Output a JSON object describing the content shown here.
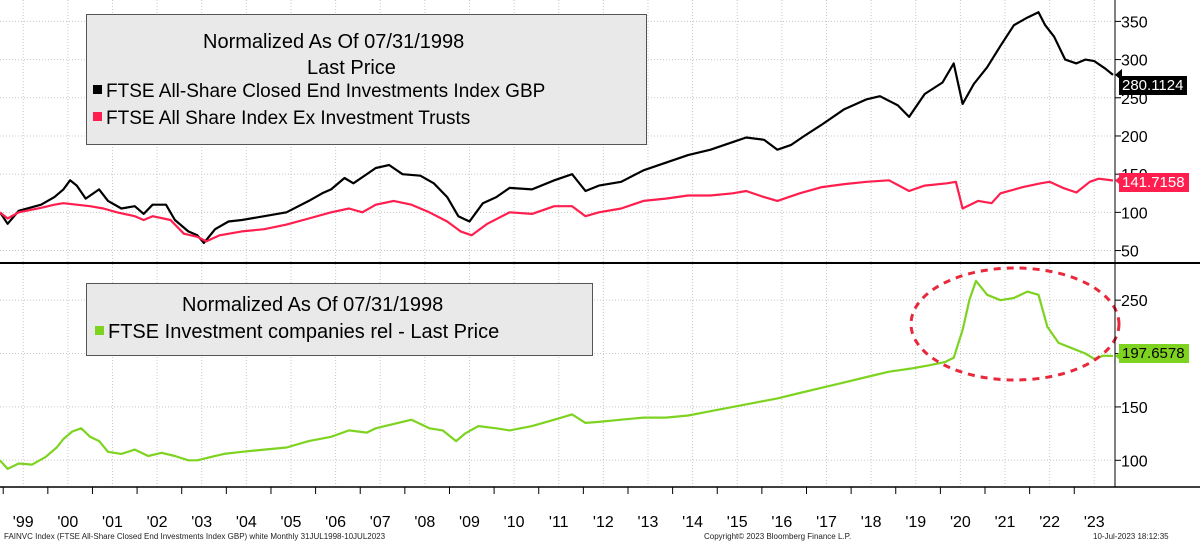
{
  "top_legend": {
    "title1": "Normalized As Of 07/31/1998",
    "title2": "Last Price",
    "series1": "FTSE All-Share Closed End Investments Index GBP",
    "series2": "FTSE All Share Index Ex Investment Trusts"
  },
  "bottom_legend": {
    "title1": "Normalized As Of 07/31/1998",
    "series1": "FTSE Investment companies rel - Last Price"
  },
  "footer": {
    "left": "FAINVC Index (FTSE All-Share Closed End Investments Index GBP) white  Monthly 31JUL1998-10JUL2023",
    "center": "Copyright© 2023 Bloomberg Finance L.P.",
    "right": "10-Jul-2023 18:12:35"
  },
  "colors": {
    "closed_end": "#000000",
    "ex_trusts": "#ff1e4e",
    "relative": "#7ed321",
    "ellipse": "#e8293c",
    "grid": "#c8c8c8"
  },
  "chart_data": [
    {
      "type": "line",
      "panel": "top",
      "ylim": [
        35,
        378
      ],
      "yticks": [
        "50",
        "100",
        "150",
        "200",
        "250",
        "300",
        "350"
      ],
      "grid": true,
      "legend": "top-left",
      "x_labels": [
        "'99",
        "'00",
        "'01",
        "'02",
        "'03",
        "'04",
        "'05",
        "'06",
        "'07",
        "'08",
        "'09",
        "'10",
        "'11",
        "'12",
        "'13",
        "'14",
        "'15",
        "'16",
        "'17",
        "'18",
        "'19",
        "'20",
        "'21",
        "'22",
        "'23"
      ],
      "series": [
        {
          "name": "FTSE All-Share Closed End Investments Index GBP",
          "last_value": "280.1124",
          "points": [
            [
              1998.58,
              100
            ],
            [
              1998.75,
              85
            ],
            [
              1999.0,
              102
            ],
            [
              1999.5,
              110
            ],
            [
              1999.8,
              120
            ],
            [
              2000.0,
              130
            ],
            [
              2000.15,
              142
            ],
            [
              2000.3,
              135
            ],
            [
              2000.5,
              118
            ],
            [
              2000.8,
              130
            ],
            [
              2001.0,
              115
            ],
            [
              2001.3,
              105
            ],
            [
              2001.6,
              108
            ],
            [
              2001.8,
              98
            ],
            [
              2002.0,
              110
            ],
            [
              2002.3,
              110
            ],
            [
              2002.5,
              90
            ],
            [
              2002.8,
              75
            ],
            [
              2003.0,
              70
            ],
            [
              2003.15,
              60
            ],
            [
              2003.4,
              78
            ],
            [
              2003.7,
              88
            ],
            [
              2004.0,
              90
            ],
            [
              2004.5,
              95
            ],
            [
              2005.0,
              100
            ],
            [
              2005.5,
              115
            ],
            [
              2005.8,
              125
            ],
            [
              2006.0,
              130
            ],
            [
              2006.3,
              145
            ],
            [
              2006.5,
              138
            ],
            [
              2007.0,
              158
            ],
            [
              2007.3,
              162
            ],
            [
              2007.6,
              150
            ],
            [
              2008.0,
              148
            ],
            [
              2008.3,
              138
            ],
            [
              2008.6,
              120
            ],
            [
              2008.85,
              95
            ],
            [
              2009.1,
              88
            ],
            [
              2009.4,
              112
            ],
            [
              2009.7,
              120
            ],
            [
              2010.0,
              132
            ],
            [
              2010.5,
              130
            ],
            [
              2011.0,
              142
            ],
            [
              2011.4,
              150
            ],
            [
              2011.7,
              128
            ],
            [
              2012.0,
              135
            ],
            [
              2012.5,
              140
            ],
            [
              2013.0,
              155
            ],
            [
              2013.5,
              165
            ],
            [
              2014.0,
              175
            ],
            [
              2014.5,
              182
            ],
            [
              2015.0,
              192
            ],
            [
              2015.3,
              198
            ],
            [
              2015.7,
              195
            ],
            [
              2016.0,
              182
            ],
            [
              2016.3,
              188
            ],
            [
              2016.6,
              200
            ],
            [
              2017.0,
              215
            ],
            [
              2017.5,
              235
            ],
            [
              2018.0,
              248
            ],
            [
              2018.3,
              252
            ],
            [
              2018.7,
              240
            ],
            [
              2018.95,
              225
            ],
            [
              2019.3,
              255
            ],
            [
              2019.7,
              270
            ],
            [
              2019.95,
              295
            ],
            [
              2020.15,
              242
            ],
            [
              2020.4,
              268
            ],
            [
              2020.7,
              290
            ],
            [
              2021.0,
              318
            ],
            [
              2021.3,
              345
            ],
            [
              2021.6,
              355
            ],
            [
              2021.85,
              362
            ],
            [
              2022.0,
              345
            ],
            [
              2022.2,
              330
            ],
            [
              2022.45,
              300
            ],
            [
              2022.7,
              295
            ],
            [
              2022.9,
              300
            ],
            [
              2023.1,
              298
            ],
            [
              2023.35,
              288
            ],
            [
              2023.52,
              280
            ]
          ]
        },
        {
          "name": "FTSE All Share Index Ex Investment Trusts",
          "last_value": "141.7158",
          "points": [
            [
              1998.58,
              100
            ],
            [
              1998.75,
              92
            ],
            [
              1999.0,
              100
            ],
            [
              1999.5,
              106
            ],
            [
              1999.8,
              110
            ],
            [
              2000.0,
              112
            ],
            [
              2000.3,
              110
            ],
            [
              2000.6,
              108
            ],
            [
              2000.9,
              105
            ],
            [
              2001.2,
              100
            ],
            [
              2001.6,
              95
            ],
            [
              2001.8,
              90
            ],
            [
              2002.0,
              95
            ],
            [
              2002.4,
              90
            ],
            [
              2002.7,
              72
            ],
            [
              2003.0,
              68
            ],
            [
              2003.2,
              62
            ],
            [
              2003.5,
              70
            ],
            [
              2004.0,
              75
            ],
            [
              2004.5,
              78
            ],
            [
              2005.0,
              84
            ],
            [
              2005.5,
              92
            ],
            [
              2006.0,
              100
            ],
            [
              2006.4,
              105
            ],
            [
              2006.7,
              100
            ],
            [
              2007.0,
              110
            ],
            [
              2007.4,
              115
            ],
            [
              2007.8,
              110
            ],
            [
              2008.2,
              100
            ],
            [
              2008.6,
              88
            ],
            [
              2008.9,
              75
            ],
            [
              2009.15,
              70
            ],
            [
              2009.5,
              85
            ],
            [
              2010.0,
              100
            ],
            [
              2010.5,
              98
            ],
            [
              2011.0,
              108
            ],
            [
              2011.4,
              108
            ],
            [
              2011.7,
              95
            ],
            [
              2012.0,
              100
            ],
            [
              2012.5,
              105
            ],
            [
              2013.0,
              115
            ],
            [
              2013.5,
              118
            ],
            [
              2014.0,
              122
            ],
            [
              2014.5,
              122
            ],
            [
              2015.0,
              125
            ],
            [
              2015.3,
              128
            ],
            [
              2015.7,
              120
            ],
            [
              2016.0,
              115
            ],
            [
              2016.5,
              125
            ],
            [
              2017.0,
              133
            ],
            [
              2017.5,
              137
            ],
            [
              2018.0,
              140
            ],
            [
              2018.5,
              142
            ],
            [
              2018.95,
              128
            ],
            [
              2019.3,
              135
            ],
            [
              2019.8,
              138
            ],
            [
              2020.0,
              140
            ],
            [
              2020.15,
              105
            ],
            [
              2020.5,
              115
            ],
            [
              2020.8,
              112
            ],
            [
              2021.0,
              125
            ],
            [
              2021.5,
              133
            ],
            [
              2021.9,
              138
            ],
            [
              2022.1,
              140
            ],
            [
              2022.4,
              132
            ],
            [
              2022.7,
              126
            ],
            [
              2023.0,
              140
            ],
            [
              2023.2,
              144
            ],
            [
              2023.52,
              141.7
            ]
          ]
        }
      ]
    },
    {
      "type": "line",
      "panel": "bottom",
      "ylim": [
        75,
        282
      ],
      "yticks": [
        "100",
        "150",
        "200",
        "250"
      ],
      "grid": true,
      "legend": "top-left",
      "x_labels": [
        "'99",
        "'00",
        "'01",
        "'02",
        "'03",
        "'04",
        "'05",
        "'06",
        "'07",
        "'08",
        "'09",
        "'10",
        "'11",
        "'12",
        "'13",
        "'14",
        "'15",
        "'16",
        "'17",
        "'18",
        "'19",
        "'20",
        "'21",
        "'22",
        "'23"
      ],
      "annotation": "dashed ellipse highlighting 2020-2023",
      "series": [
        {
          "name": "FTSE Investment companies rel - Last Price",
          "last_value": "197.6578",
          "points": [
            [
              1998.58,
              100
            ],
            [
              1998.75,
              92
            ],
            [
              1999.0,
              97
            ],
            [
              1999.3,
              96
            ],
            [
              1999.6,
              103
            ],
            [
              1999.85,
              112
            ],
            [
              2000.0,
              120
            ],
            [
              2000.2,
              127
            ],
            [
              2000.4,
              130
            ],
            [
              2000.6,
              122
            ],
            [
              2000.8,
              118
            ],
            [
              2001.0,
              108
            ],
            [
              2001.3,
              106
            ],
            [
              2001.6,
              110
            ],
            [
              2001.9,
              104
            ],
            [
              2002.2,
              107
            ],
            [
              2002.5,
              104
            ],
            [
              2002.8,
              100
            ],
            [
              2003.0,
              100
            ],
            [
              2003.3,
              103
            ],
            [
              2003.6,
              106
            ],
            [
              2004.0,
              108
            ],
            [
              2004.5,
              110
            ],
            [
              2005.0,
              112
            ],
            [
              2005.5,
              118
            ],
            [
              2006.0,
              122
            ],
            [
              2006.4,
              128
            ],
            [
              2006.8,
              126
            ],
            [
              2007.0,
              130
            ],
            [
              2007.5,
              135
            ],
            [
              2007.8,
              138
            ],
            [
              2008.2,
              130
            ],
            [
              2008.5,
              128
            ],
            [
              2008.8,
              118
            ],
            [
              2009.0,
              125
            ],
            [
              2009.3,
              132
            ],
            [
              2009.7,
              130
            ],
            [
              2010.0,
              128
            ],
            [
              2010.5,
              132
            ],
            [
              2011.0,
              138
            ],
            [
              2011.4,
              143
            ],
            [
              2011.7,
              135
            ],
            [
              2012.0,
              136
            ],
            [
              2012.5,
              138
            ],
            [
              2013.0,
              140
            ],
            [
              2013.5,
              140
            ],
            [
              2014.0,
              142
            ],
            [
              2014.5,
              146
            ],
            [
              2015.0,
              150
            ],
            [
              2015.5,
              154
            ],
            [
              2016.0,
              158
            ],
            [
              2016.5,
              163
            ],
            [
              2017.0,
              168
            ],
            [
              2017.5,
              173
            ],
            [
              2018.0,
              178
            ],
            [
              2018.5,
              183
            ],
            [
              2019.0,
              186
            ],
            [
              2019.4,
              189
            ],
            [
              2019.75,
              192
            ],
            [
              2019.95,
              196
            ],
            [
              2020.15,
              222
            ],
            [
              2020.3,
              250
            ],
            [
              2020.45,
              268
            ],
            [
              2020.7,
              255
            ],
            [
              2021.0,
              250
            ],
            [
              2021.3,
              252
            ],
            [
              2021.6,
              258
            ],
            [
              2021.85,
              255
            ],
            [
              2022.05,
              225
            ],
            [
              2022.3,
              210
            ],
            [
              2022.6,
              205
            ],
            [
              2022.9,
              200
            ],
            [
              2023.1,
              195
            ],
            [
              2023.3,
              198
            ],
            [
              2023.52,
              197.7
            ]
          ]
        }
      ]
    }
  ]
}
